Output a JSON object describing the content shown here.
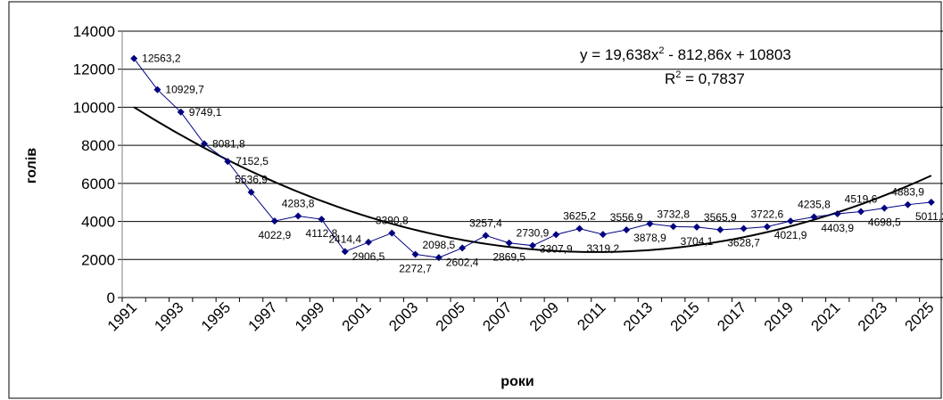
{
  "chart_data": {
    "type": "line",
    "x_label": "роки",
    "y_label": "голів",
    "categories": [
      "1991",
      null,
      "1993",
      null,
      "1995",
      null,
      "1997",
      null,
      "1999",
      null,
      "2001",
      null,
      "2003",
      null,
      "2005",
      null,
      "2007",
      null,
      "2009",
      null,
      "2011",
      null,
      "2013",
      null,
      "2015",
      null,
      "2017",
      null,
      "2019",
      null,
      "2021",
      null,
      "2023",
      null,
      "2025"
    ],
    "series": [
      {
        "color": "#000080",
        "values": [
          12563.2,
          10929.7,
          9749.1,
          8081.8,
          7152.5,
          5536.9,
          4022.9,
          4283.8,
          4112.8,
          2414.4,
          2906.5,
          3390.8,
          2272.7,
          2098.5,
          2602.4,
          3257.4,
          2869.5,
          2730.9,
          3307.9,
          3625.2,
          3319.2,
          3556.9,
          3878.9,
          3732.8,
          3704.1,
          3565.9,
          3628.7,
          3722.6,
          4021.9,
          4235.8,
          4403.9,
          4519.6,
          4698.5,
          4883.9,
          5011.2
        ],
        "value_labels": [
          "12563,2",
          "10929,7",
          "9749,1",
          "8081,8",
          "7152,5",
          "5536,9",
          "4022,9",
          "4283,8",
          "4112,8",
          "2414,4",
          "2906,5",
          "3390,8",
          "2272,7",
          "2098,5",
          "2602,4",
          "3257,4",
          "2869,5",
          "2730,9",
          "3307,9",
          "3625,2",
          "3319,2",
          "3556,9",
          "3878,9",
          "3732,8",
          "3704,1",
          "3565,9",
          "3628,7",
          "3722,6",
          "4021,9",
          "4235,8",
          "4403,9",
          "4519,6",
          "4698,5",
          "4883,9",
          "5011,2"
        ]
      }
    ],
    "trendline": {
      "color": "#000000",
      "coefficients": [
        19.638,
        -812.86,
        10803
      ],
      "equation": [
        "y = 19,638x",
        "2",
        " - 812,86x + 10803"
      ],
      "r_squared": [
        "R",
        "2",
        " = 0,7837"
      ]
    },
    "ylim": [
      0,
      14000
    ],
    "yticks": [
      0,
      2000,
      4000,
      6000,
      8000,
      10000,
      12000,
      14000
    ],
    "grid": true
  }
}
